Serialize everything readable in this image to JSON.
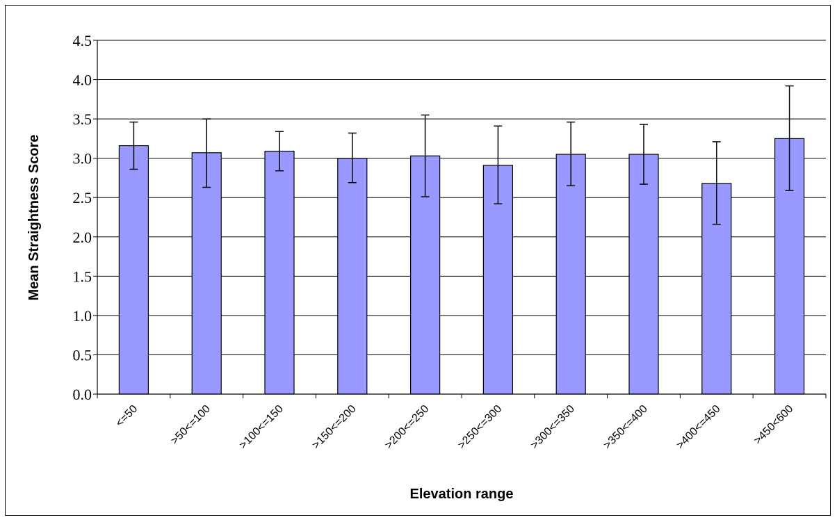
{
  "chart_data": {
    "type": "bar",
    "title": "",
    "xlabel": "Elevation range",
    "ylabel": "Mean Straightness Score",
    "ylim": [
      0,
      4.5
    ],
    "y_ticks": [
      "0.0",
      "0.5",
      "1.0",
      "1.5",
      "2.0",
      "2.5",
      "3.0",
      "3.5",
      "4.0",
      "4.5"
    ],
    "categories": [
      "<=50",
      ">50<=100",
      ">100<=150",
      ">150<=200",
      ">200<=250",
      ">250<=300",
      ">300<=350",
      ">350<=400",
      ">400<=450",
      ">450<600"
    ],
    "series": [
      {
        "values": [
          3.16,
          3.07,
          3.09,
          3.0,
          3.03,
          2.91,
          3.05,
          3.05,
          2.68,
          3.25
        ],
        "error_low": [
          2.86,
          2.63,
          2.84,
          2.69,
          2.51,
          2.42,
          2.65,
          2.67,
          2.16,
          2.59
        ],
        "error_high": [
          3.46,
          3.5,
          3.34,
          3.32,
          3.55,
          3.41,
          3.46,
          3.43,
          3.21,
          3.92
        ],
        "color": "#9999ff"
      }
    ],
    "grid": true,
    "legend": "none"
  }
}
